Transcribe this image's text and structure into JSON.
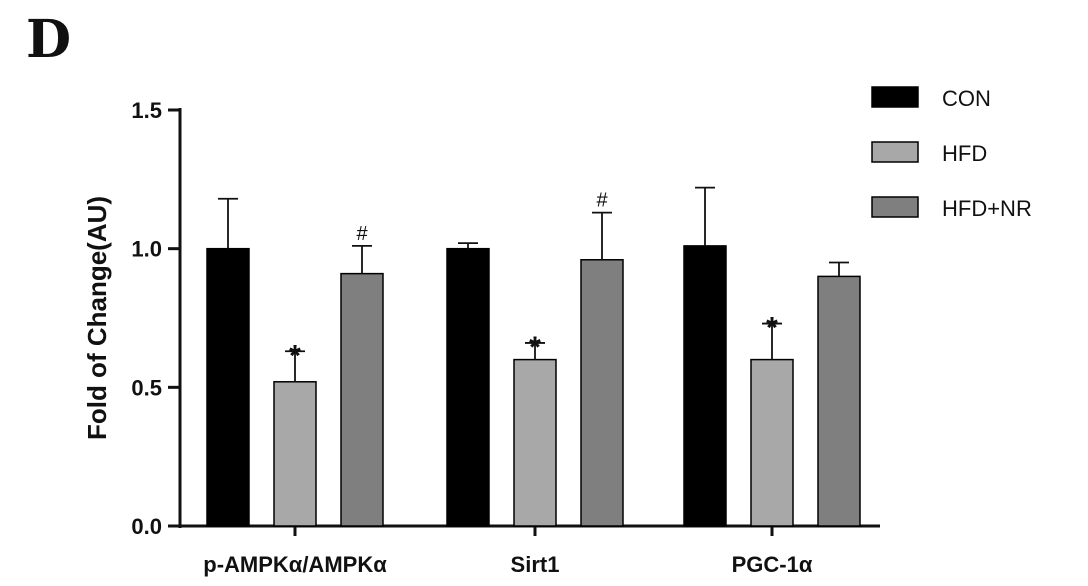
{
  "panel_label": "D",
  "chart_data": {
    "type": "bar",
    "categories": [
      "p-AMPKα/AMPKα",
      "Sirt1",
      "PGC-1α"
    ],
    "series": [
      {
        "name": "CON",
        "color": "#000000",
        "values": [
          1.0,
          1.0,
          1.01
        ],
        "errors": [
          0.18,
          0.02,
          0.21
        ],
        "marks": [
          "",
          "",
          ""
        ]
      },
      {
        "name": "HFD",
        "color": "#a8a8a8",
        "values": [
          0.52,
          0.6,
          0.6
        ],
        "errors": [
          0.11,
          0.06,
          0.13
        ],
        "marks": [
          "*",
          "*",
          "*"
        ]
      },
      {
        "name": "HFD+NR",
        "color": "#7f7f7f",
        "values": [
          0.91,
          0.96,
          0.9
        ],
        "errors": [
          0.1,
          0.17,
          0.05
        ],
        "marks": [
          "#",
          "#",
          ""
        ]
      }
    ],
    "ylabel": "Fold of Change(AU)",
    "xlabel": "",
    "ylim": [
      0,
      1.5
    ],
    "yticks": [
      "0.0",
      "0.5",
      "1.0",
      "1.5"
    ],
    "grid": false,
    "legend_position": "top-right"
  }
}
